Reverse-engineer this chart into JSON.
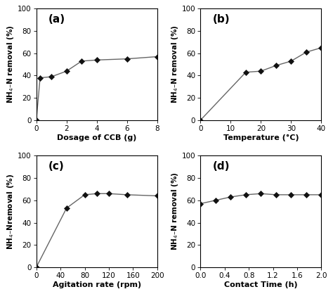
{
  "panel_a": {
    "x": [
      0,
      0.25,
      1,
      2,
      3,
      4,
      6,
      8
    ],
    "y": [
      0,
      38,
      39,
      44,
      53,
      54,
      55,
      57
    ],
    "xlabel": "Dosage of CCB (g)",
    "ylabel": "NH$_4$–N removal (%)",
    "label": "(a)",
    "xlim": [
      0,
      8
    ],
    "ylim": [
      0,
      100
    ],
    "xticks": [
      0,
      2,
      4,
      6,
      8
    ],
    "yticks": [
      0,
      20,
      40,
      60,
      80,
      100
    ]
  },
  "panel_b": {
    "x": [
      0,
      15,
      20,
      25,
      30,
      35,
      40
    ],
    "y": [
      0,
      43,
      44,
      49,
      53,
      61,
      65
    ],
    "xlabel": "Temperature (°C)",
    "ylabel": "NH$_4$–N removal (%)",
    "label": "(b)",
    "xlim": [
      0,
      40
    ],
    "ylim": [
      0,
      100
    ],
    "xticks": [
      0,
      10,
      20,
      30,
      40
    ],
    "yticks": [
      0,
      20,
      40,
      60,
      80,
      100
    ]
  },
  "panel_c": {
    "x": [
      0,
      50,
      80,
      100,
      120,
      150,
      200
    ],
    "y": [
      0,
      53,
      65,
      66,
      66,
      65,
      64
    ],
    "xlabel": "Agitation rate (rpm)",
    "ylabel": "NH$_4$–Nremoval (%)",
    "label": "(c)",
    "xlim": [
      0,
      200
    ],
    "ylim": [
      0,
      100
    ],
    "xticks": [
      0,
      40,
      80,
      120,
      160,
      200
    ],
    "yticks": [
      0,
      20,
      40,
      60,
      80,
      100
    ]
  },
  "panel_d": {
    "x": [
      0.0,
      0.25,
      0.5,
      0.75,
      1.0,
      1.25,
      1.5,
      1.75,
      2.0
    ],
    "y": [
      57,
      60,
      63,
      65,
      66,
      65,
      65,
      65,
      65
    ],
    "xlabel": "Contact Time (h)",
    "ylabel": "NH$_4$–N removal (%)",
    "label": "(d)",
    "xlim": [
      0.0,
      2.0
    ],
    "ylim": [
      0,
      100
    ],
    "xticks": [
      0.0,
      0.4,
      0.8,
      1.2,
      1.6,
      2.0
    ],
    "yticks": [
      0,
      20,
      40,
      60,
      80,
      100
    ]
  },
  "line_color": "#666666",
  "marker": "D",
  "marker_color": "#111111",
  "marker_size": 4.5,
  "linewidth": 1.0,
  "xlabel_fontsize": 8,
  "ylabel_fontsize": 7.5,
  "tick_fontsize": 7.5,
  "panel_label_fontsize": 11,
  "bg_color": "#ffffff"
}
